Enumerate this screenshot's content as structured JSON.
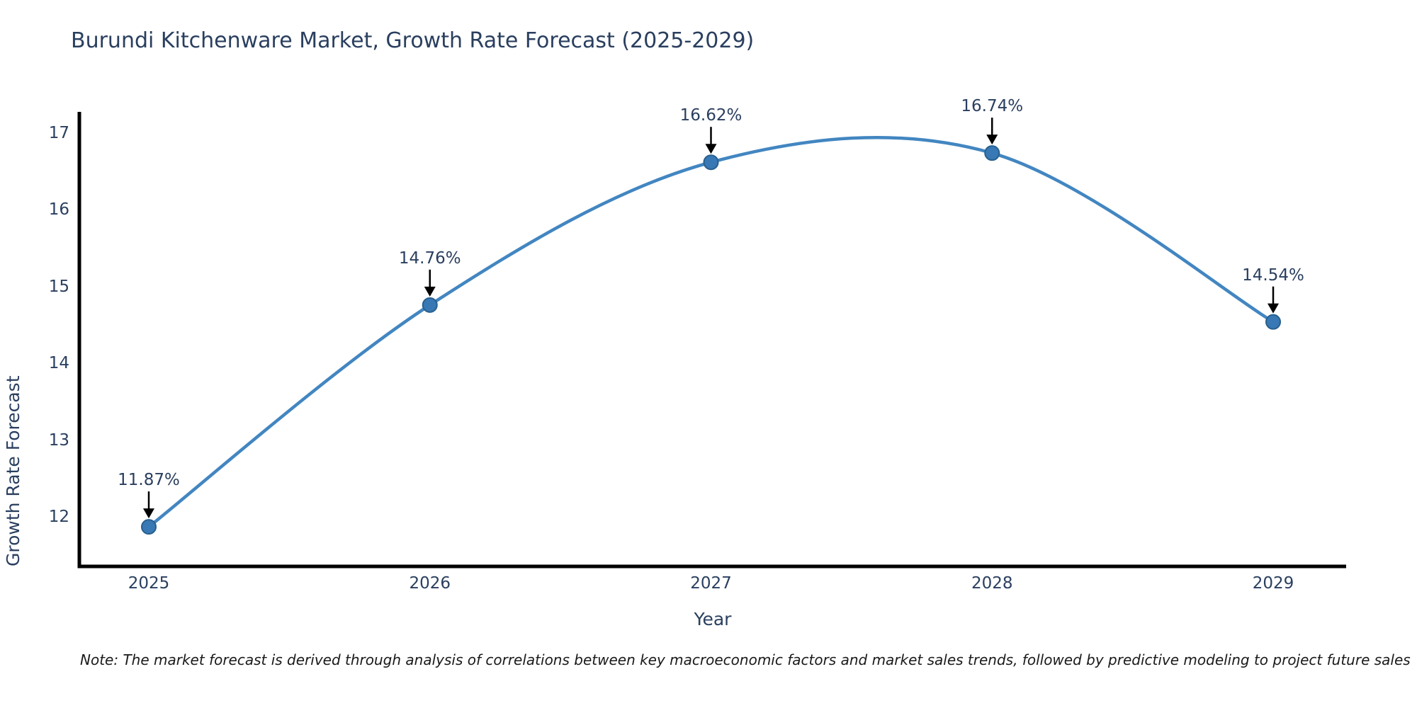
{
  "note": "Note: The market forecast is derived through analysis of correlations between key macroeconomic factors and market sales trends, followed by predictive modeling to project future sales",
  "chart_data": {
    "type": "line",
    "line_shape": "spline",
    "title": "Burundi Kitchenware Market, Growth Rate Forecast (2025-2029)",
    "xlabel": "Year",
    "ylabel": "Growth Rate Forecast",
    "categories": [
      "2025",
      "2026",
      "2027",
      "2028",
      "2029"
    ],
    "values": [
      11.87,
      14.76,
      16.62,
      16.74,
      14.54
    ],
    "point_labels": [
      "11.87%",
      "14.76%",
      "16.62%",
      "16.74%",
      "14.54%"
    ],
    "y_ticks": [
      12,
      13,
      14,
      15,
      16,
      17
    ],
    "ylim": [
      11.35,
      17.26
    ],
    "grid": false,
    "legend_visible": false,
    "annotations_have_arrows": true,
    "colors": {
      "line": "#4286c1",
      "marker_fill": "#3878b4",
      "marker_edge": "#29608f",
      "arrow": "#000000",
      "axis": "#000000",
      "text": "#2a3f5f"
    }
  }
}
